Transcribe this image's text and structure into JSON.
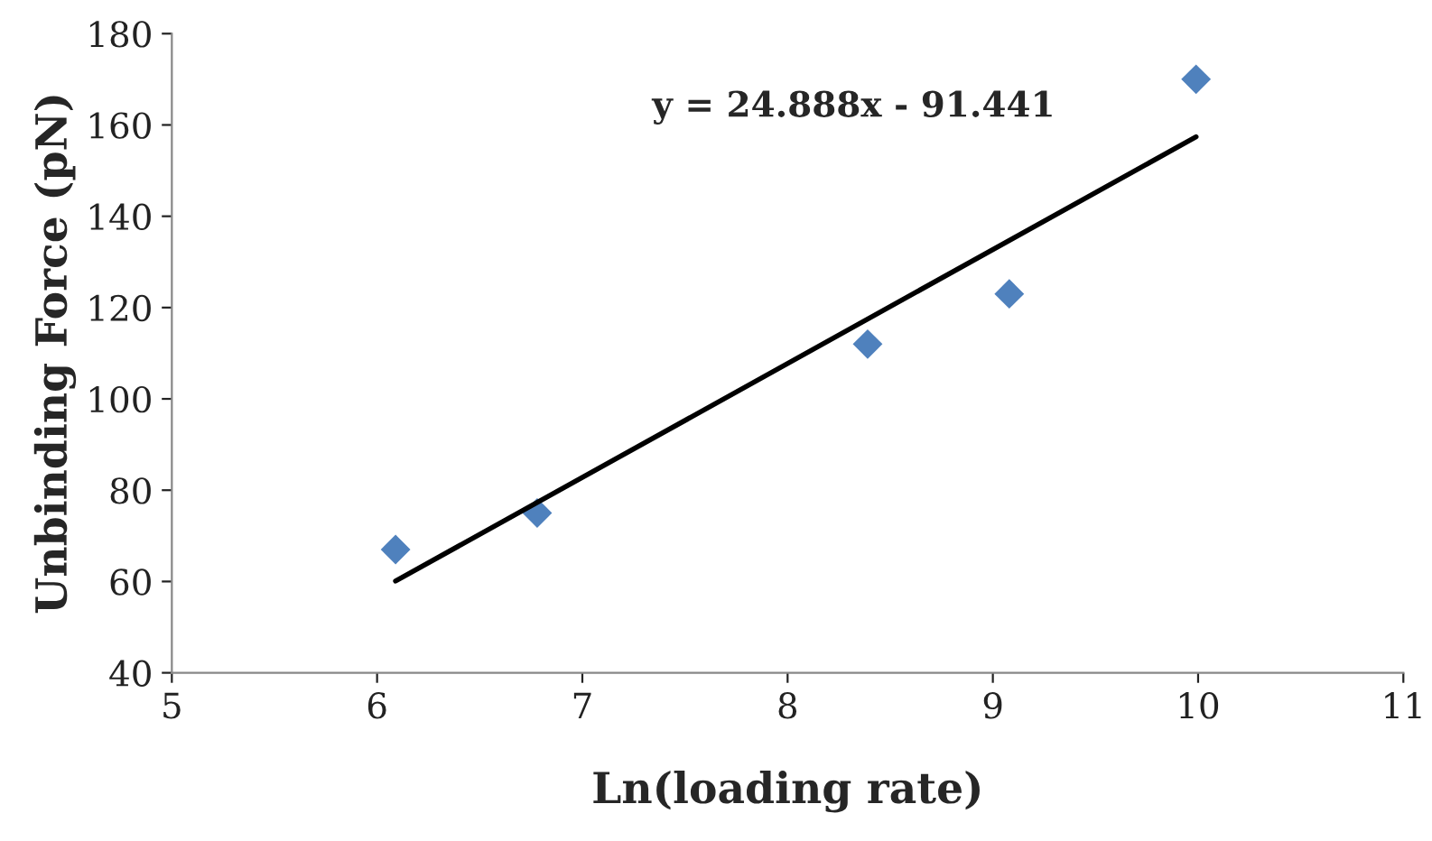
{
  "chart_data": {
    "type": "scatter",
    "xlabel": "Ln(loading rate)",
    "ylabel": "Unbinding Force (pN)",
    "xlim": [
      5,
      11
    ],
    "xticks": [
      5,
      6,
      7,
      8,
      9,
      10,
      11
    ],
    "ylim": [
      40,
      180
    ],
    "yticks": [
      40,
      60,
      80,
      100,
      120,
      140,
      160,
      180
    ],
    "grid": false,
    "legend": false,
    "series": [
      {
        "color": "#4f81bd",
        "marker": "diamond",
        "x": [
          6.09,
          6.78,
          8.39,
          9.08,
          9.99
        ],
        "values": [
          67,
          75,
          112,
          123,
          170
        ]
      },
      {
        "type": "line",
        "color": "#000000",
        "marker": "none",
        "line_style": "solid",
        "x": [
          6.09,
          9.99
        ],
        "values": [
          60.1,
          157.4
        ]
      }
    ],
    "annotations": [
      "y = 24.888x - 91.441"
    ]
  }
}
